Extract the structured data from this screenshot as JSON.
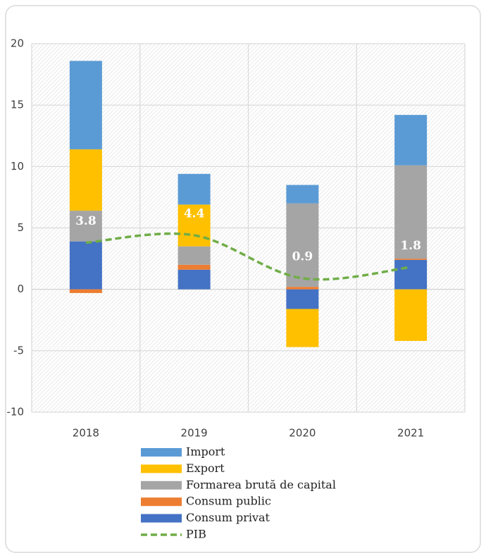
{
  "chart_data": {
    "type": "bar",
    "stacked": true,
    "categories": [
      "2018",
      "2019",
      "2020",
      "2021"
    ],
    "series": [
      {
        "name": "Consum privat",
        "color": "#4472c4",
        "values": [
          3.9,
          1.6,
          -1.6,
          2.4
        ]
      },
      {
        "name": "Consum public",
        "color": "#ed7d31",
        "values": [
          -0.3,
          0.4,
          0.2,
          0.1
        ]
      },
      {
        "name": "Formarea brută de capital",
        "color": "#a5a5a5",
        "values": [
          2.5,
          1.5,
          6.8,
          7.6
        ]
      },
      {
        "name": "Export",
        "color": "#ffc000",
        "values": [
          5.0,
          3.4,
          -3.1,
          -4.2
        ]
      },
      {
        "name": "Import",
        "color": "#5b9bd5",
        "values": [
          7.2,
          2.5,
          1.5,
          4.1
        ]
      },
      {
        "name": "PIB",
        "color": "#70ad47",
        "type": "line",
        "dashed": true,
        "smooth": true,
        "data_labels": true,
        "values": [
          3.8,
          4.4,
          0.9,
          1.8
        ]
      }
    ],
    "ylim": [
      -10,
      20
    ],
    "yticks": [
      -10,
      -5,
      0,
      5,
      10,
      15,
      20
    ],
    "grid": true,
    "legend": "bottom"
  }
}
